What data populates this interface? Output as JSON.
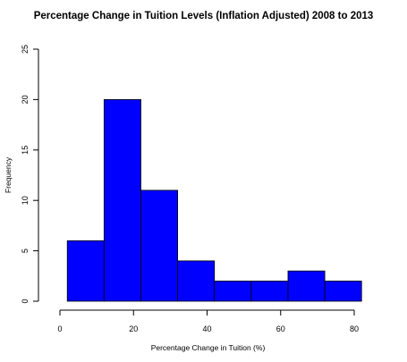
{
  "chart_data": {
    "type": "bar",
    "title": "Percentage Change in Tuition Levels (Inflation Adjusted) 2008 to 2013",
    "xlabel": "Percentage Change in Tuition (%)",
    "ylabel": "Frequency",
    "bins": [
      {
        "from": 2,
        "to": 12,
        "count": 6
      },
      {
        "from": 12,
        "to": 22,
        "count": 20
      },
      {
        "from": 22,
        "to": 32,
        "count": 11
      },
      {
        "from": 32,
        "to": 42,
        "count": 4
      },
      {
        "from": 42,
        "to": 52,
        "count": 2
      },
      {
        "from": 52,
        "to": 62,
        "count": 2
      },
      {
        "from": 62,
        "to": 72,
        "count": 3
      },
      {
        "from": 72,
        "to": 82,
        "count": 2
      }
    ],
    "xlim": [
      0,
      80
    ],
    "ylim": [
      0,
      25
    ],
    "xticks": [
      0,
      20,
      40,
      60,
      80
    ],
    "yticks": [
      0,
      5,
      10,
      15,
      20,
      25
    ],
    "bar_color": "#0000ff",
    "grid": false,
    "legend": "none"
  }
}
